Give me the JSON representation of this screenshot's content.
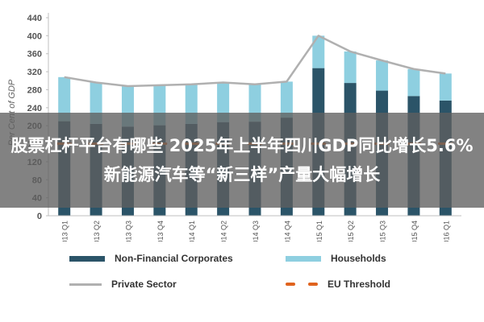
{
  "chart_data": {
    "type": "bar",
    "stacked": true,
    "title": "",
    "xlabel": "",
    "ylabel": "Per Cent of GDP",
    "ylim": [
      0,
      440
    ],
    "yticks": [
      0,
      40,
      80,
      120,
      160,
      200,
      240,
      280,
      320,
      360,
      400,
      440
    ],
    "categories": [
      "2013 Q1",
      "2013 Q2",
      "2013 Q3",
      "2013 Q4",
      "2014 Q1",
      "2014 Q2",
      "2014 Q3",
      "2014 Q4",
      "2015 Q1",
      "2015 Q2",
      "2015 Q3",
      "2015 Q4",
      "2016 Q1"
    ],
    "series": [
      {
        "name": "Non-Financial Corporates",
        "kind": "bar",
        "color": "#2b5468",
        "values": [
          210,
          204,
          198,
          201,
          204,
          208,
          209,
          218,
          328,
          295,
          278,
          266,
          256
        ]
      },
      {
        "name": "Households",
        "kind": "bar",
        "color": "#8ecfe0",
        "values": [
          98,
          92,
          90,
          89,
          88,
          88,
          83,
          80,
          72,
          70,
          67,
          60,
          60
        ]
      },
      {
        "name": "Private Sector",
        "kind": "line",
        "color": "#b0b0b0",
        "values": [
          308,
          296,
          288,
          290,
          292,
          296,
          292,
          298,
          400,
          365,
          345,
          326,
          316
        ]
      },
      {
        "name": "EU Threshold",
        "kind": "dashed-line",
        "color": "#e0631e",
        "values": [
          160,
          160,
          160,
          160,
          160,
          160,
          160,
          160,
          160,
          160,
          160,
          160,
          160
        ]
      }
    ],
    "grid": false,
    "legend_position": "bottom"
  },
  "overlay": {
    "headline": "股票杠杆平台有哪些 2025年上半年四川GDP同比增长5.6% 新能源汽车等“新三样”产量大幅增长"
  },
  "legend": {
    "nonfin": "Non-Financial Corporates",
    "households": "Households",
    "private": "Private Sector",
    "eu": "EU Threshold"
  }
}
